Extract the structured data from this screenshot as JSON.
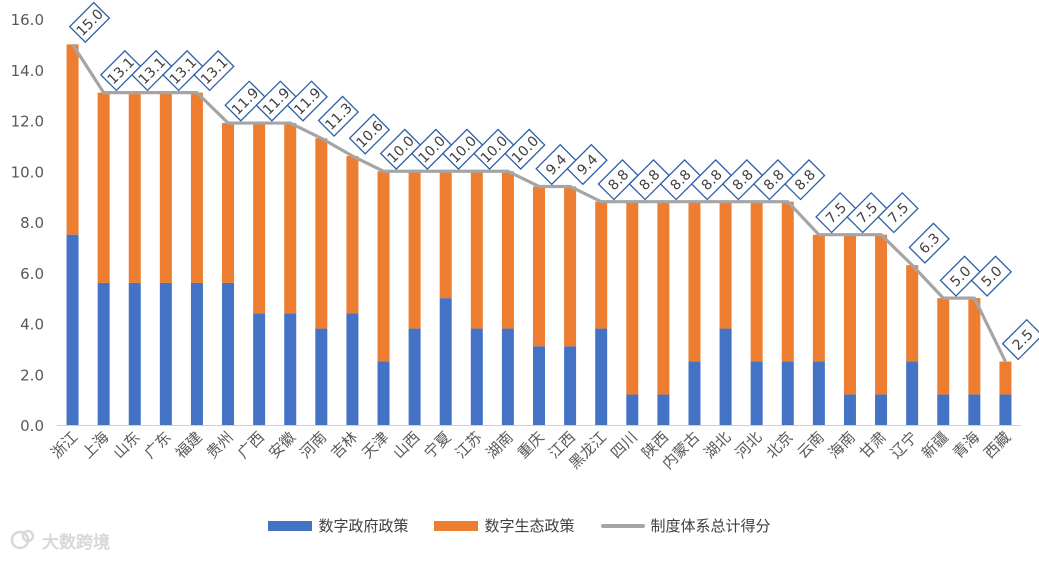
{
  "chart_data": {
    "type": "bar",
    "stacked": true,
    "categories": [
      "浙江",
      "上海",
      "山东",
      "广东",
      "福建",
      "贵州",
      "广西",
      "安徽",
      "河南",
      "吉林",
      "天津",
      "山西",
      "宁夏",
      "江苏",
      "湖南",
      "重庆",
      "江西",
      "黑龙江",
      "四川",
      "陕西",
      "内蒙古",
      "湖北",
      "河北",
      "北京",
      "云南",
      "海南",
      "甘肃",
      "辽宁",
      "新疆",
      "青海",
      "西藏"
    ],
    "series": [
      {
        "name": "数字政府政策",
        "type": "bar",
        "color": "#4472C4",
        "values": [
          7.5,
          5.6,
          5.6,
          5.6,
          5.6,
          5.6,
          4.4,
          4.4,
          3.8,
          4.4,
          2.5,
          3.8,
          5.0,
          3.8,
          3.8,
          3.1,
          3.1,
          3.8,
          1.2,
          1.2,
          2.5,
          3.8,
          2.5,
          2.5,
          2.5,
          1.2,
          1.2,
          2.5,
          1.2,
          1.2,
          1.2
        ]
      },
      {
        "name": "数字生态政策",
        "type": "bar",
        "color": "#ED7D31",
        "values": [
          7.5,
          7.5,
          7.5,
          7.5,
          7.5,
          6.3,
          7.5,
          7.5,
          7.5,
          6.2,
          7.5,
          6.2,
          5.0,
          6.2,
          6.2,
          6.3,
          6.3,
          5.0,
          7.6,
          7.6,
          6.3,
          5.0,
          6.3,
          6.3,
          5.0,
          6.3,
          6.3,
          3.8,
          3.8,
          3.8,
          1.3
        ]
      },
      {
        "name": "制度体系总计得分",
        "type": "line",
        "color": "#A5A5A5",
        "values": [
          15.0,
          13.1,
          13.1,
          13.1,
          13.1,
          11.9,
          11.9,
          11.9,
          11.3,
          10.6,
          10.0,
          10.0,
          10.0,
          10.0,
          10.0,
          9.4,
          9.4,
          8.8,
          8.8,
          8.8,
          8.8,
          8.8,
          8.8,
          8.8,
          7.5,
          7.5,
          7.5,
          6.3,
          5.0,
          5.0,
          2.5
        ],
        "labels": [
          "15.0",
          "13.1",
          "13.1",
          "13.1",
          "13.1",
          "11.9",
          "11.9",
          "11.9",
          "11.3",
          "10.6",
          "10.0",
          "10.0",
          "10.0",
          "10.0",
          "10.0",
          "9.4",
          "9.4",
          "8.8",
          "8.8",
          "8.8",
          "8.8",
          "8.8",
          "8.8",
          "8.8",
          "7.5",
          "7.5",
          "7.5",
          "6.3",
          "5.0",
          "5.0",
          "2.5"
        ]
      }
    ],
    "y_ticks": [
      "0.0",
      "2.0",
      "4.0",
      "6.0",
      "8.0",
      "10.0",
      "12.0",
      "14.0",
      "16.0"
    ],
    "ylim": [
      0,
      16
    ],
    "grid": false,
    "legend_position": "bottom",
    "label_color": "#2E5FA8"
  },
  "watermark": {
    "text": "大数跨境",
    "icon": "chat-bubble-logo-icon"
  }
}
